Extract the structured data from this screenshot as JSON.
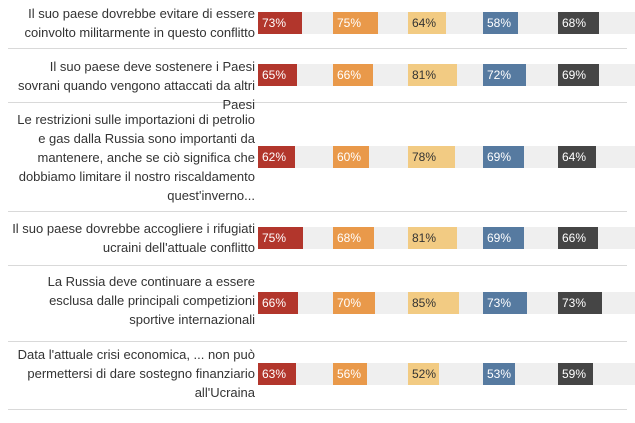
{
  "chart_data": {
    "type": "table",
    "title": "",
    "columns": [
      {
        "color": "#b2362c"
      },
      {
        "color": "#e9994a"
      },
      {
        "color": "#f2cb83"
      },
      {
        "color": "#567aa0"
      },
      {
        "color": "#454545"
      }
    ],
    "rows": [
      {
        "label": "Il suo paese dovrebbe evitare di essere coinvolto militarmente in questo conflitto",
        "values": [
          "73%",
          "75%",
          "64%",
          "58%",
          "68%"
        ],
        "numbers": [
          73,
          75,
          64,
          58,
          68
        ]
      },
      {
        "label": "Il suo paese deve sostenere i Paesi sovrani quando vengono attaccati da altri Paesi",
        "values": [
          "65%",
          "66%",
          "81%",
          "72%",
          "69%"
        ],
        "numbers": [
          65,
          66,
          81,
          72,
          69
        ]
      },
      {
        "label": "Le restrizioni sulle importazioni di petrolio e gas dalla Russia sono importanti da mantenere, anche se ciò significa che dobbiamo limitare il nostro riscaldamento quest'inverno...",
        "values": [
          "62%",
          "60%",
          "78%",
          "69%",
          "64%"
        ],
        "numbers": [
          62,
          60,
          78,
          69,
          64
        ]
      },
      {
        "label": "Il suo paese dovrebbe accogliere i rifugiati ucraini dell'attuale conflitto",
        "values": [
          "75%",
          "68%",
          "81%",
          "69%",
          "66%"
        ],
        "numbers": [
          75,
          68,
          81,
          69,
          66
        ]
      },
      {
        "label": "La Russia deve continuare a essere esclusa dalle principali competizioni sportive internazionali",
        "values": [
          "66%",
          "70%",
          "85%",
          "73%",
          "73%"
        ],
        "numbers": [
          66,
          70,
          85,
          73,
          73
        ]
      },
      {
        "label": "Data l'attuale crisi economica, ... non può permettersi di dare sostegno finanziario all'Ucraina",
        "values": [
          "63%",
          "56%",
          "52%",
          "53%",
          "59%"
        ],
        "numbers": [
          63,
          56,
          52,
          53,
          59
        ]
      }
    ]
  }
}
